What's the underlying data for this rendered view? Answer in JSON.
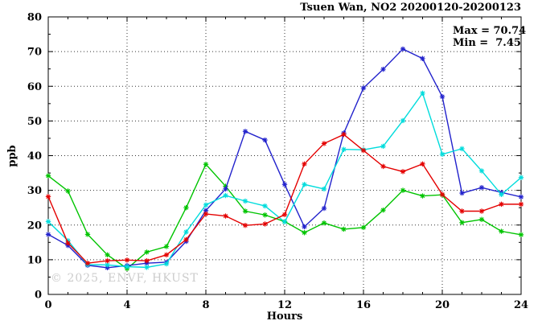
{
  "header": {
    "title": "Tsuen Wan, NO2 20200120-20200123"
  },
  "annotation": {
    "max_line": "Max = 70.74",
    "min_line": "Min =  7.45"
  },
  "watermark": "© 2025, ENVF, HKUST",
  "chart_data": {
    "type": "line",
    "title": "Tsuen Wan, NO2 20200120-20200123",
    "xlabel": "Hours",
    "ylabel": "ppb",
    "xlim": [
      0,
      24
    ],
    "ylim": [
      0,
      80
    ],
    "x_major_ticks": [
      0,
      4,
      8,
      12,
      16,
      20,
      24
    ],
    "x_minor_step": 1,
    "y_major_ticks": [
      0,
      10,
      20,
      30,
      40,
      50,
      60,
      70,
      80
    ],
    "y_minor_step": 5,
    "grid": true,
    "legend_position": "none",
    "stats": {
      "max": 70.74,
      "min": 7.45
    },
    "x": [
      0,
      1,
      2,
      3,
      4,
      5,
      6,
      7,
      8,
      9,
      10,
      11,
      12,
      13,
      14,
      15,
      16,
      17,
      18,
      19,
      20,
      21,
      22,
      23,
      24
    ],
    "series": [
      {
        "name": "series-green",
        "color": "#00c400",
        "values": [
          34.2,
          29.8,
          17.3,
          11.4,
          7.45,
          12.2,
          13.8,
          25.0,
          37.5,
          31.2,
          24.0,
          22.9,
          21.0,
          17.8,
          20.6,
          18.8,
          19.3,
          24.3,
          30.0,
          28.4,
          28.7,
          20.7,
          21.6,
          18.2,
          17.2
        ]
      },
      {
        "name": "series-blue",
        "color": "#2222cc",
        "values": [
          17.3,
          14.1,
          8.4,
          7.7,
          8.3,
          9.0,
          9.3,
          15.3,
          24.2,
          30.4,
          47.0,
          44.5,
          31.7,
          19.5,
          24.8,
          46.5,
          59.5,
          64.9,
          70.74,
          68.0,
          57.0,
          29.2,
          30.8,
          29.4,
          28.1
        ]
      },
      {
        "name": "series-cyan",
        "color": "#00dcdc",
        "values": [
          21.0,
          15.5,
          8.6,
          8.5,
          8.0,
          7.8,
          8.8,
          18.0,
          25.8,
          28.5,
          26.9,
          25.5,
          20.9,
          31.7,
          30.4,
          41.8,
          41.7,
          42.7,
          50.1,
          58.0,
          40.4,
          42.0,
          35.6,
          28.8,
          33.7
        ]
      },
      {
        "name": "series-red",
        "color": "#e40000",
        "values": [
          28.2,
          14.8,
          9.0,
          9.7,
          9.9,
          9.7,
          11.4,
          15.8,
          23.2,
          22.6,
          19.9,
          20.3,
          23.0,
          37.6,
          43.5,
          46.1,
          41.5,
          36.9,
          35.4,
          37.6,
          28.8,
          24.0,
          24.0,
          26.0,
          26.0
        ]
      }
    ]
  }
}
